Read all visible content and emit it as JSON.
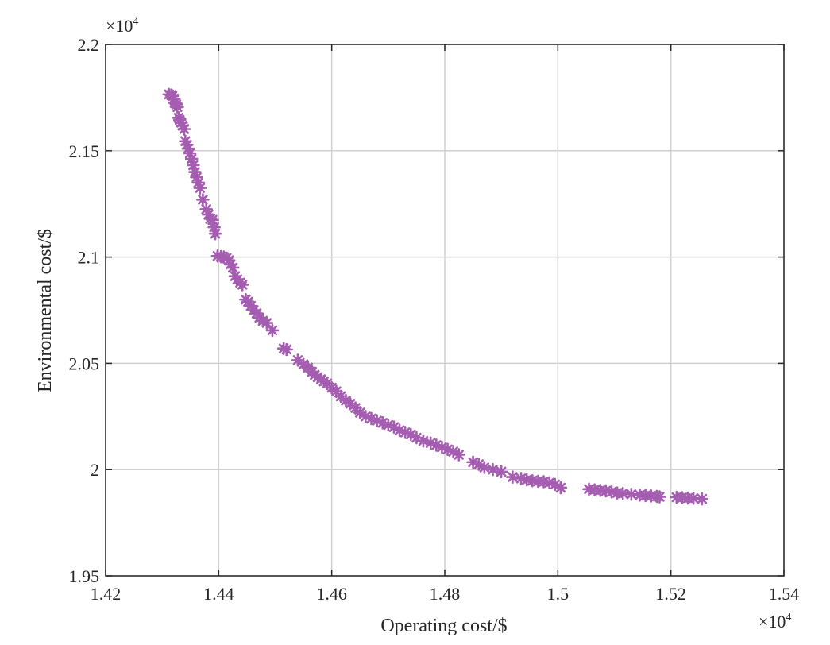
{
  "chart_data": {
    "type": "scatter",
    "xlabel": "Operating cost/$",
    "ylabel": "Environmental cost/$",
    "x_exponent_label": {
      "base": "×10",
      "exp": "4"
    },
    "y_exponent_label": {
      "base": "×10",
      "exp": "4"
    },
    "xlim": [
      1.42,
      1.54
    ],
    "ylim": [
      1.95,
      2.2
    ],
    "xticks": [
      1.42,
      1.44,
      1.46,
      1.48,
      1.5,
      1.52,
      1.54
    ],
    "xtick_labels": [
      "1.42",
      "1.44",
      "1.46",
      "1.48",
      "1.5",
      "1.52",
      "1.54"
    ],
    "yticks": [
      1.95,
      2.0,
      2.05,
      2.1,
      2.15,
      2.2
    ],
    "ytick_labels": [
      "1.95",
      "2",
      "2.05",
      "2.1",
      "2.15",
      "2.2"
    ],
    "grid": true,
    "marker": "asterisk",
    "marker_color": "#A45DB0",
    "grid_color": "#D0D0D0",
    "axis_color": "#262626",
    "series": [
      {
        "x": [
          1.4312,
          1.4316,
          1.4318,
          1.4321,
          1.4322,
          1.4325,
          1.4327,
          1.4329,
          1.4331,
          1.4334,
          1.4336,
          1.4339,
          1.4341,
          1.4344,
          1.4346,
          1.4349,
          1.4352,
          1.4355,
          1.4358,
          1.4361,
          1.4364,
          1.4367,
          1.4372,
          1.4378,
          1.4382,
          1.4385,
          1.4389,
          1.4392,
          1.4394,
          1.4398,
          1.4404,
          1.4409,
          1.4414,
          1.4418,
          1.4421,
          1.4425,
          1.4429,
          1.4433,
          1.4438,
          1.4442,
          1.4448,
          1.4452,
          1.4457,
          1.4462,
          1.4467,
          1.4472,
          1.4478,
          1.4485,
          1.4495,
          1.4515,
          1.452,
          1.454,
          1.455,
          1.4558,
          1.4565,
          1.457,
          1.4575,
          1.4581,
          1.4586,
          1.4592,
          1.46,
          1.4608,
          1.4616,
          1.4625,
          1.4633,
          1.4642,
          1.465,
          1.466,
          1.467,
          1.468,
          1.469,
          1.47,
          1.471,
          1.472,
          1.473,
          1.474,
          1.475,
          1.4762,
          1.4775,
          1.4785,
          1.4795,
          1.4805,
          1.4815,
          1.4825,
          1.485,
          1.486,
          1.487,
          1.4885,
          1.49,
          1.492,
          1.4935,
          1.4945,
          1.4955,
          1.4965,
          1.4975,
          1.4985,
          1.4995,
          1.5005,
          1.5055,
          1.5065,
          1.5075,
          1.5085,
          1.5095,
          1.5105,
          1.5115,
          1.513,
          1.5145,
          1.5155,
          1.5165,
          1.5175,
          1.518,
          1.521,
          1.522,
          1.523,
          1.524,
          1.5255
        ],
        "y": [
          2.1765,
          2.1762,
          2.1757,
          2.1745,
          2.1725,
          2.1718,
          2.1705,
          2.1655,
          2.1645,
          2.1632,
          2.1618,
          2.1602,
          2.1545,
          2.1528,
          2.151,
          2.1488,
          2.1462,
          2.1432,
          2.14,
          2.1375,
          2.135,
          2.1325,
          2.127,
          2.1225,
          2.12,
          2.118,
          2.1175,
          2.114,
          2.111,
          2.1005,
          2.1002,
          2.1,
          2.0995,
          2.0985,
          2.0965,
          2.095,
          2.091,
          2.0895,
          2.088,
          2.087,
          2.08,
          2.079,
          2.077,
          2.075,
          2.0735,
          2.0715,
          2.07,
          2.069,
          2.0655,
          2.057,
          2.0565,
          2.0515,
          2.0495,
          2.048,
          2.046,
          2.0445,
          2.0435,
          2.0425,
          2.0415,
          2.0405,
          2.0385,
          2.0368,
          2.0345,
          2.0325,
          2.031,
          2.029,
          2.0268,
          2.025,
          2.024,
          2.023,
          2.022,
          2.021,
          2.02,
          2.0185,
          2.0175,
          2.0165,
          2.015,
          2.0135,
          2.0125,
          2.0115,
          2.0105,
          2.0095,
          2.0085,
          2.007,
          2.0035,
          2.0025,
          2.001,
          2.0,
          1.999,
          1.9965,
          1.9958,
          1.9952,
          1.9948,
          1.9945,
          1.9943,
          1.9938,
          1.993,
          1.9915,
          1.9908,
          1.9905,
          1.9902,
          1.99,
          1.9895,
          1.989,
          1.9888,
          1.9884,
          1.988,
          1.9878,
          1.9876,
          1.9874,
          1.9872,
          1.987,
          1.9868,
          1.9866,
          1.9865,
          1.9862
        ]
      }
    ]
  }
}
